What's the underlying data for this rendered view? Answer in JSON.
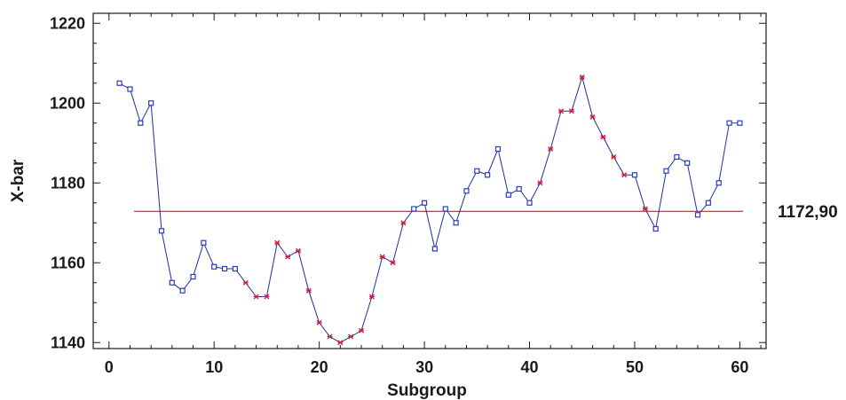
{
  "chart_data": {
    "type": "line",
    "title": "",
    "xlabel": "Subgroup",
    "ylabel": "X-bar",
    "xlim": [
      -1.5,
      62.5
    ],
    "ylim": [
      1138.5,
      1222.5
    ],
    "x_ticks": [
      0,
      10,
      20,
      30,
      40,
      50,
      60
    ],
    "y_ticks": [
      1140,
      1160,
      1180,
      1200,
      1220
    ],
    "center_line": {
      "value": 1172.9,
      "label": "1172,90",
      "color": "#8b1a1a"
    },
    "colors": {
      "line": "#1f2f9f",
      "normal_marker": "#2b3dbf",
      "flagged_marker": "#d01a3a",
      "frame": "#1a1a1a"
    },
    "series": [
      {
        "x": [
          1,
          2,
          3,
          4,
          5,
          6,
          7,
          8,
          9,
          10,
          11,
          12,
          13,
          14,
          15,
          16,
          17,
          18,
          19,
          20,
          21,
          22,
          23,
          24,
          25,
          26,
          27,
          28,
          29,
          30,
          31,
          32,
          33,
          34,
          35,
          36,
          37,
          38,
          39,
          40,
          41,
          42,
          43,
          44,
          45,
          46,
          47,
          48,
          49,
          50,
          51,
          52,
          53,
          54,
          55,
          56,
          57,
          58,
          59,
          60
        ],
        "values": [
          1205,
          1203.5,
          1195,
          1200,
          1168,
          1155,
          1153,
          1156.5,
          1165,
          1159,
          1158.5,
          1158.5,
          1155,
          1151.5,
          1151.5,
          1165,
          1161.5,
          1163,
          1153,
          1145,
          1141.5,
          1140,
          1141.5,
          1143,
          1151.5,
          1161.5,
          1160,
          1170,
          1173.5,
          1175,
          1163.5,
          1173.5,
          1170,
          1178,
          1183,
          1182,
          1188.5,
          1177,
          1178.5,
          1175,
          1180,
          1188.5,
          1198,
          1198,
          1206.5,
          1196.5,
          1191.5,
          1186.5,
          1182,
          1182,
          1173.5,
          1168.5,
          1183,
          1186.5,
          1185,
          1172,
          1175,
          1180,
          1195,
          1195
        ],
        "flagged": [
          false,
          false,
          false,
          false,
          false,
          false,
          false,
          false,
          false,
          false,
          false,
          false,
          true,
          true,
          true,
          true,
          true,
          true,
          true,
          true,
          true,
          true,
          true,
          true,
          true,
          true,
          true,
          true,
          false,
          false,
          false,
          false,
          false,
          false,
          false,
          false,
          false,
          false,
          false,
          false,
          true,
          true,
          true,
          true,
          true,
          true,
          true,
          true,
          true,
          false,
          true,
          false,
          false,
          false,
          false,
          false,
          false,
          false,
          false,
          false
        ]
      }
    ]
  }
}
